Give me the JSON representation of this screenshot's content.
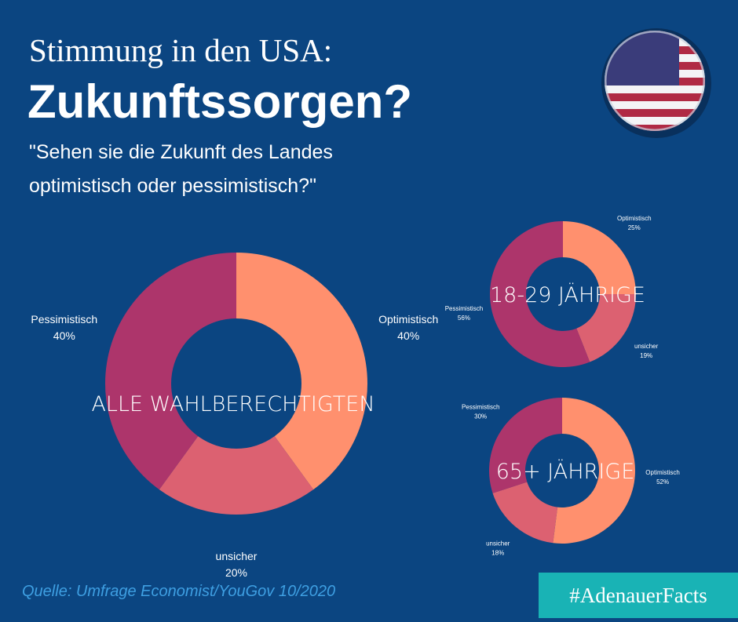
{
  "header": {
    "title_top": "Stimmung in den USA:",
    "title_main": "Zukunftssorgen?",
    "subtitle": [
      "\"Sehen sie die Zukunft des Landes",
      "optimistisch oder pessimistisch?\""
    ]
  },
  "footer": {
    "source": "Quelle: Umfrage Economist/YouGov 10/2020",
    "hashtag": "#AdenauerFacts"
  },
  "chart_data": [
    {
      "type": "donut",
      "title": "ALLE WAHLBERECHTIGTEN",
      "categories": [
        "Optimistisch",
        "unsicher",
        "Pessimistisch"
      ],
      "values": [
        40,
        20,
        40
      ],
      "value_labels": [
        "40%",
        "20%",
        "40%"
      ],
      "colors": [
        "#ff906e",
        "#dc6171",
        "#ad356b"
      ]
    },
    {
      "type": "donut",
      "title": "18-29 JÄHRIGE",
      "categories": [
        "Optimistisch",
        "unsicher",
        "Pessimistisch"
      ],
      "values": [
        25,
        19,
        56
      ],
      "value_labels": [
        "25%",
        "19%",
        "56%"
      ],
      "colors": [
        "#ff906e",
        "#dc6171",
        "#ad356b"
      ]
    },
    {
      "type": "donut",
      "title": "65+ JÄHRIGE",
      "categories": [
        "Optimistisch",
        "unsicher",
        "Pessimistisch"
      ],
      "values": [
        52,
        18,
        30
      ],
      "value_labels": [
        "52%",
        "18%",
        "30%"
      ],
      "colors": [
        "#ff906e",
        "#dc6171",
        "#ad356b"
      ]
    }
  ]
}
